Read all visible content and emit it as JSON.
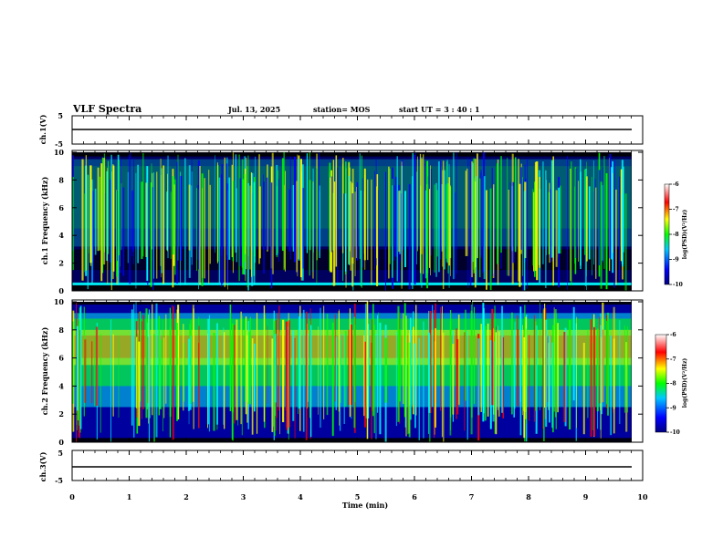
{
  "header": {
    "title": "VLF Spectra",
    "date": "Jul. 13, 2025",
    "station": "station= MOS",
    "start": "start UT =  3 : 40 : 1"
  },
  "colors": {
    "spectrum_low": "#000000",
    "spectrum_mid1": "#0000ff",
    "spectrum_mid2": "#00ffff",
    "spectrum_mid3": "#00ff00",
    "spectrum_mid4": "#ffff00",
    "spectrum_high": "#ff0000",
    "spectrum_max": "#ffffff"
  },
  "chart_data": [
    {
      "type": "line",
      "name": "ch1-waveform",
      "ylabel": "ch.1(V)",
      "ylim": [
        -5,
        5
      ],
      "yticks": [
        "5",
        "-5"
      ],
      "xlim": [
        0,
        10
      ],
      "level": 0,
      "series": [
        {
          "name": "ch.1",
          "x": [
            0,
            9.8
          ],
          "values": [
            0,
            0
          ]
        }
      ]
    },
    {
      "type": "heatmap",
      "name": "ch1-spectrogram",
      "ylabel": "ch.1 Frequency (kHz)",
      "ylim": [
        0,
        10
      ],
      "yticks": [
        "0",
        "2",
        "4",
        "6",
        "8",
        "10"
      ],
      "xlim": [
        0,
        10
      ],
      "data_extent_min": 9.8,
      "band_kHz": [
        0.5,
        9.6
      ],
      "colorbar": {
        "label": "log(PSD)(V²/Hz)",
        "range": [
          -10,
          -6
        ],
        "ticks": [
          "-6",
          "-7",
          "-8",
          "-9",
          "-10"
        ]
      }
    },
    {
      "type": "heatmap",
      "name": "ch2-spectrogram",
      "ylabel": "ch.2 Frequency (kHz)",
      "ylim": [
        0,
        10
      ],
      "yticks": [
        "0",
        "2",
        "4",
        "6",
        "8",
        "10"
      ],
      "xlim": [
        0,
        10
      ],
      "data_extent_min": 9.8,
      "peak_band_kHz": [
        5.5,
        8.0
      ],
      "colorbar": {
        "label": "log(PSD)(V²/Hz)",
        "range": [
          -10,
          -6
        ],
        "ticks": [
          "-6",
          "-7",
          "-8",
          "-9",
          "-10"
        ]
      }
    },
    {
      "type": "line",
      "name": "ch3-waveform",
      "ylabel": "ch.3(V)",
      "ylim": [
        -5,
        5
      ],
      "yticks": [
        "5",
        "-5"
      ],
      "xlim": [
        0,
        10
      ],
      "level": 0,
      "series": [
        {
          "name": "ch.3",
          "x": [
            0,
            9.8
          ],
          "values": [
            0,
            0
          ]
        }
      ]
    }
  ],
  "xaxis": {
    "label": "Time (min)",
    "ticks": [
      "0",
      "1",
      "2",
      "3",
      "4",
      "5",
      "6",
      "7",
      "8",
      "9",
      "10"
    ]
  }
}
